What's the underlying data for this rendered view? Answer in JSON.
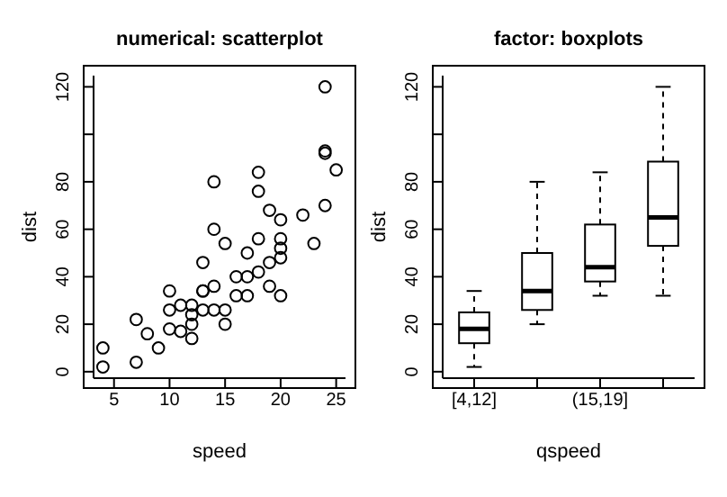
{
  "chart_data": [
    {
      "type": "scatter",
      "title": "numerical: scatterplot",
      "xlabel": "speed",
      "ylabel": "dist",
      "marker": "circle",
      "grid": false,
      "xlim": [
        3.16,
        25.84
      ],
      "xticks": [
        5,
        10,
        15,
        20,
        25
      ],
      "ylim": [
        -2.72,
        124.72
      ],
      "yticks": [
        0,
        20,
        40,
        60,
        80,
        {
          "value": 100,
          "label": null
        },
        120
      ],
      "x": [
        4,
        4,
        7,
        7,
        8,
        9,
        10,
        10,
        10,
        11,
        11,
        12,
        12,
        12,
        12,
        13,
        13,
        13,
        13,
        14,
        14,
        14,
        14,
        15,
        15,
        15,
        16,
        16,
        17,
        17,
        17,
        18,
        18,
        18,
        18,
        19,
        19,
        19,
        20,
        20,
        20,
        20,
        20,
        22,
        23,
        24,
        24,
        24,
        24,
        25
      ],
      "series": [
        {
          "color": "#000000",
          "values": [
            2,
            10,
            4,
            22,
            16,
            10,
            18,
            26,
            34,
            17,
            28,
            14,
            20,
            24,
            28,
            26,
            34,
            34,
            46,
            26,
            36,
            60,
            80,
            20,
            26,
            54,
            32,
            40,
            32,
            40,
            50,
            42,
            56,
            76,
            84,
            36,
            46,
            68,
            32,
            48,
            52,
            56,
            64,
            66,
            54,
            70,
            92,
            93,
            120,
            85
          ]
        }
      ]
    },
    {
      "type": "box",
      "title": "factor: boxplots",
      "xlabel": "qspeed",
      "ylabel": "dist",
      "grid": false,
      "color": "#000000",
      "categories": [
        "[4,12]",
        null,
        "(15,19]",
        null
      ],
      "ylim": [
        -2.72,
        124.72
      ],
      "yticks": [
        0,
        20,
        40,
        60,
        80,
        {
          "value": 100,
          "label": null
        },
        120
      ],
      "boxes": [
        {
          "low": 2,
          "q1": 12,
          "median": 18,
          "q3": 25,
          "high": 34
        },
        {
          "low": 20,
          "q1": 26,
          "median": 34,
          "q3": 50,
          "high": 80
        },
        {
          "low": 32,
          "q1": 38,
          "median": 44,
          "q3": 62,
          "high": 84
        },
        {
          "low": 32,
          "q1": 53,
          "median": 65,
          "q3": 88.5,
          "high": 120
        }
      ]
    }
  ]
}
